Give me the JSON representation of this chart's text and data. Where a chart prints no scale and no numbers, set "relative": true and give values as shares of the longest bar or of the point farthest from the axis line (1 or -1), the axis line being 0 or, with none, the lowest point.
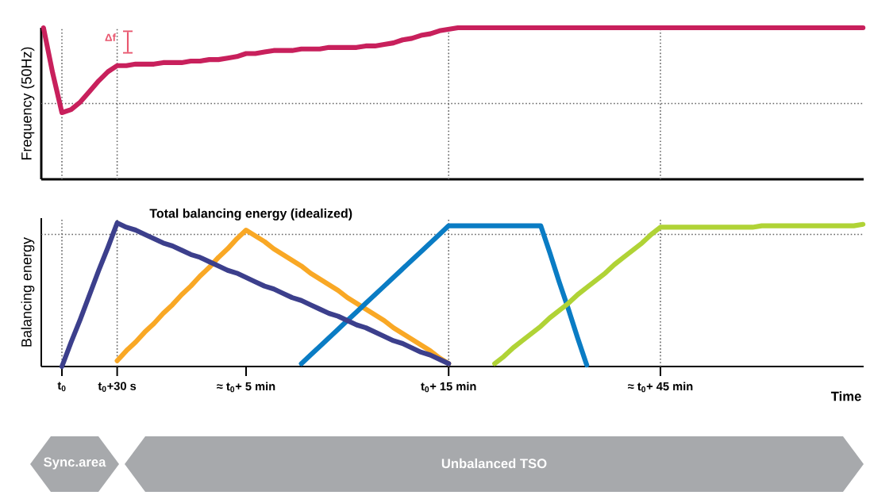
{
  "chart_data": [
    {
      "type": "line",
      "ylabel": "Frequency (50Hz)",
      "annotations": [
        "Δf"
      ],
      "relative": true,
      "tick_labels": false,
      "categories": [
        null,
        null,
        "t$_{0}$",
        null,
        null,
        null,
        null,
        null,
        "t$_{0}$+30 s",
        null,
        null,
        null,
        null,
        null,
        null,
        null,
        null,
        null,
        null,
        null,
        null,
        null,
        "≈ t$_{0}$+ 5 min",
        null,
        null,
        null,
        null,
        null,
        null,
        null,
        null,
        null,
        null,
        null,
        null,
        null,
        null,
        null,
        null,
        null,
        null,
        null,
        null,
        null,
        "t$_{0}$+ 15 min",
        null,
        null,
        null,
        null,
        null,
        null,
        null,
        null,
        null,
        null,
        null,
        null,
        null,
        null,
        null,
        null,
        null,
        null,
        null,
        null,
        null,
        null,
        "≈ t$_{0}$+ 45 min",
        null,
        null,
        null,
        null,
        null,
        null,
        null,
        null,
        null,
        null,
        null,
        null,
        null,
        null,
        null,
        null,
        null,
        null,
        null,
        null,
        null,
        null
      ],
      "series": [
        {
          "color": "#c8205c",
          "values": [
            1.0,
            0.7,
            0.44,
            0.46,
            0.51,
            0.58,
            0.65,
            0.71,
            0.75,
            0.75,
            0.76,
            0.76,
            0.76,
            0.77,
            0.77,
            0.77,
            0.78,
            0.78,
            0.79,
            0.79,
            0.8,
            0.81,
            0.83,
            0.83,
            0.84,
            0.85,
            0.85,
            0.85,
            0.86,
            0.86,
            0.86,
            0.87,
            0.87,
            0.87,
            0.87,
            0.88,
            0.88,
            0.89,
            0.9,
            0.92,
            0.93,
            0.95,
            0.96,
            0.98,
            0.99,
            1.0,
            1.0,
            1.0,
            1.0,
            1.0,
            1.0,
            1.0,
            1.0,
            1.0,
            1.0,
            1.0,
            1.0,
            1.0,
            1.0,
            1.0,
            1.0,
            1.0,
            1.0,
            1.0,
            1.0,
            1.0,
            1.0,
            1.0,
            1.0,
            1.0,
            1.0,
            1.0,
            1.0,
            1.0,
            1.0,
            1.0,
            1.0,
            1.0,
            1.0,
            1.0,
            1.0,
            1.0,
            1.0,
            1.0,
            1.0,
            1.0,
            1.0,
            1.0,
            1.0,
            1.0
          ]
        }
      ],
      "ref_lines": [
        {
          "axis": "x",
          "value": "t$_{0}$",
          "color": "#666666",
          "line_style": "dotted"
        },
        {
          "axis": "x",
          "value": "t$_{0}$+30 s",
          "color": "#666666",
          "line_style": "dotted"
        },
        {
          "axis": "x",
          "value": "t$_{0}$+ 15 min",
          "color": "#666666",
          "line_style": "dotted"
        },
        {
          "axis": "x",
          "value": "≈ t$_{0}$+ 45 min",
          "color": "#666666",
          "line_style": "dotted"
        },
        {
          "axis": "y",
          "value": 0.5,
          "color": "#666666",
          "line_style": "dotted"
        }
      ]
    },
    {
      "type": "line",
      "ylabel": "Balancing energy",
      "xlabel": "Time",
      "annotations": [
        "Sync.area",
        "Unbalanced TSO"
      ],
      "relative": true,
      "tick_labels": "x",
      "categories": [
        null,
        null,
        "t$_{0}$",
        null,
        null,
        null,
        null,
        null,
        "t$_{0}$+30 s",
        null,
        null,
        null,
        null,
        null,
        null,
        null,
        null,
        null,
        null,
        null,
        null,
        null,
        "≈ t$_{0}$+ 5 min",
        null,
        null,
        null,
        null,
        null,
        null,
        null,
        null,
        null,
        null,
        null,
        null,
        null,
        null,
        null,
        null,
        null,
        null,
        null,
        null,
        null,
        "t$_{0}$+ 15 min",
        null,
        null,
        null,
        null,
        null,
        null,
        null,
        null,
        null,
        null,
        null,
        null,
        null,
        null,
        null,
        null,
        null,
        null,
        null,
        null,
        null,
        null,
        "≈ t$_{0}$+ 45 min",
        null,
        null,
        null,
        null,
        null,
        null,
        null,
        null,
        null,
        null,
        null,
        null,
        null,
        null,
        null,
        null,
        null,
        null,
        null,
        null,
        null,
        null
      ],
      "series": [
        {
          "color": "#f9a825",
          "values": [
            null,
            null,
            null,
            null,
            null,
            null,
            null,
            null,
            0.04,
            0.11,
            0.17,
            0.24,
            0.3,
            0.37,
            0.43,
            0.5,
            0.56,
            0.63,
            0.69,
            0.76,
            0.82,
            0.89,
            0.95,
            0.91,
            0.87,
            0.82,
            0.78,
            0.74,
            0.7,
            0.65,
            0.61,
            0.57,
            0.53,
            0.48,
            0.44,
            0.4,
            0.36,
            0.32,
            0.27,
            0.23,
            0.19,
            0.15,
            0.11,
            0.06,
            0.02,
            null,
            null,
            null,
            null,
            null,
            null,
            null,
            null,
            null,
            null,
            null,
            null,
            null,
            null,
            null,
            null,
            null,
            null,
            null,
            null,
            null,
            null,
            null,
            null,
            null,
            null,
            null,
            null,
            null,
            null,
            null,
            null,
            null,
            null,
            null,
            null,
            null,
            null,
            null,
            null,
            null,
            null,
            null,
            null,
            null
          ]
        },
        {
          "color": "#0a7cc4",
          "values": [
            null,
            null,
            null,
            null,
            null,
            null,
            null,
            null,
            null,
            null,
            null,
            null,
            null,
            null,
            null,
            null,
            null,
            null,
            null,
            null,
            null,
            null,
            null,
            null,
            null,
            null,
            null,
            null,
            0.02,
            0.08,
            0.14,
            0.2,
            0.26,
            0.32,
            0.38,
            0.44,
            0.5,
            0.56,
            0.62,
            0.68,
            0.74,
            0.8,
            0.86,
            0.92,
            0.98,
            0.98,
            0.98,
            0.98,
            0.98,
            0.98,
            0.98,
            0.98,
            0.98,
            0.98,
            0.98,
            0.79,
            0.59,
            0.4,
            0.2,
            0.01,
            null,
            null,
            null,
            null,
            null,
            null,
            null,
            null,
            null,
            null,
            null,
            null,
            null,
            null,
            null,
            null,
            null,
            null,
            null,
            null,
            null,
            null,
            null,
            null,
            null,
            null,
            null,
            null,
            null,
            null
          ]
        },
        {
          "color": "#b0d336",
          "values": [
            null,
            null,
            null,
            null,
            null,
            null,
            null,
            null,
            null,
            null,
            null,
            null,
            null,
            null,
            null,
            null,
            null,
            null,
            null,
            null,
            null,
            null,
            null,
            null,
            null,
            null,
            null,
            null,
            null,
            null,
            null,
            null,
            null,
            null,
            null,
            null,
            null,
            null,
            null,
            null,
            null,
            null,
            null,
            null,
            null,
            null,
            null,
            null,
            null,
            0.02,
            0.07,
            0.13,
            0.18,
            0.23,
            0.28,
            0.34,
            0.39,
            0.44,
            0.5,
            0.55,
            0.6,
            0.65,
            0.71,
            0.76,
            0.81,
            0.86,
            0.92,
            0.97,
            0.97,
            0.97,
            0.97,
            0.97,
            0.97,
            0.97,
            0.97,
            0.97,
            0.97,
            0.97,
            0.98,
            0.98,
            0.98,
            0.98,
            0.98,
            0.98,
            0.98,
            0.98,
            0.98,
            0.98,
            0.98,
            0.99
          ]
        },
        {
          "name": "Total balancing energy (idealized)",
          "color": "#3c3f8c",
          "values": [
            null,
            null,
            0,
            0.17,
            0.33,
            0.5,
            0.67,
            0.83,
            1.0,
            0.97,
            0.95,
            0.92,
            0.89,
            0.86,
            0.84,
            0.81,
            0.78,
            0.76,
            0.73,
            0.7,
            0.67,
            0.65,
            0.62,
            0.59,
            0.56,
            0.54,
            0.51,
            0.48,
            0.46,
            0.43,
            0.4,
            0.37,
            0.35,
            0.32,
            0.29,
            0.27,
            0.24,
            0.21,
            0.18,
            0.16,
            0.13,
            0.1,
            0.08,
            0.05,
            0.02,
            null,
            null,
            null,
            null,
            null,
            null,
            null,
            null,
            null,
            null,
            null,
            null,
            null,
            null,
            null,
            null,
            null,
            null,
            null,
            null,
            null,
            null,
            null,
            null,
            null,
            null,
            null,
            null,
            null,
            null,
            null,
            null,
            null,
            null,
            null,
            null,
            null,
            null,
            null,
            null,
            null,
            null,
            null,
            null,
            null
          ]
        }
      ],
      "ref_lines": [
        {
          "axis": "x",
          "value": "t$_{0}$",
          "color": "#666666",
          "line_style": "dotted"
        },
        {
          "axis": "x",
          "value": "t$_{0}$+30 s",
          "color": "#666666",
          "line_style": "dotted"
        },
        {
          "axis": "x",
          "value": "t$_{0}$+ 15 min",
          "color": "#666666",
          "line_style": "dotted"
        },
        {
          "axis": "x",
          "value": "≈ t$_{0}$+ 45 min",
          "color": "#666666",
          "line_style": "dotted"
        },
        {
          "axis": "y",
          "value": 0.92,
          "color": "#666666",
          "line_style": "dotted"
        }
      ]
    }
  ]
}
